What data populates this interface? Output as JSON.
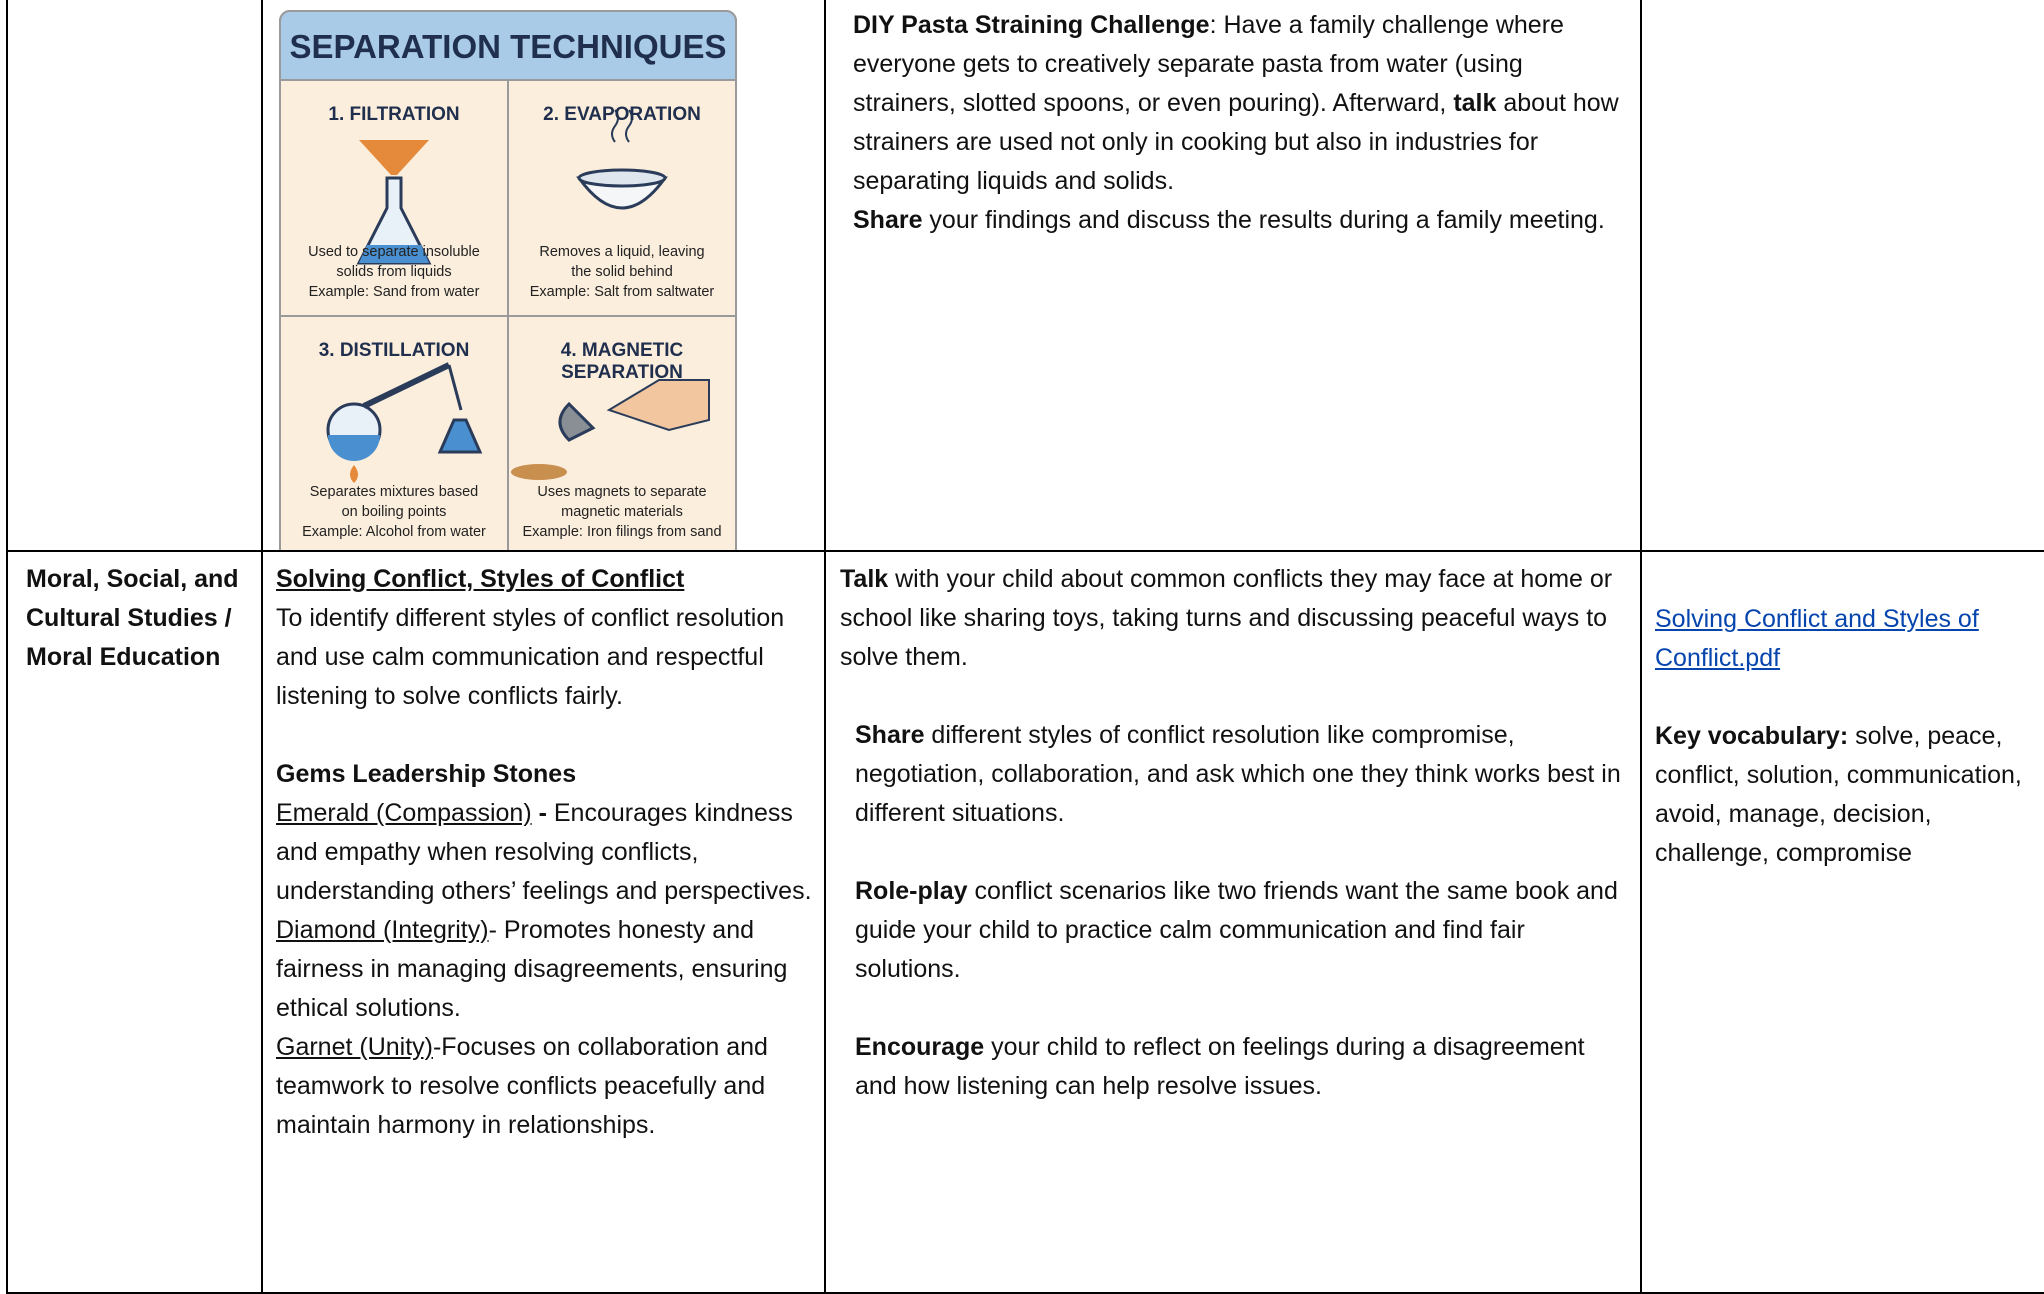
{
  "infographic": {
    "title": "SEPARATION TECHNIQUES",
    "panels": [
      {
        "heading": [
          "1. FILTRATION"
        ],
        "caption": [
          "Used to separate insoluble",
          "solids from liquids",
          "Example: Sand from water"
        ]
      },
      {
        "heading": [
          "2. EVAPORATION"
        ],
        "caption": [
          "Removes a liquid, leaving",
          "the solid behind",
          "Example: Salt from saltwater"
        ]
      },
      {
        "heading": [
          "3. DISTILLATION"
        ],
        "caption": [
          "Separates mixtures based",
          "on boiling points",
          "Example: Alcohol from water"
        ]
      },
      {
        "heading": [
          "4. MAGNETIC",
          "SEPARATION"
        ],
        "caption": [
          "Uses magnets to separate",
          "magnetic materials",
          "Example: Iron filings from sand"
        ]
      }
    ]
  },
  "rows": [
    {
      "activity": [
        [
          [
            {
              "text": "DIY Pasta Straining Challenge",
              "style": "bold"
            },
            ": Have a family challenge where everyone gets to creatively separate pasta from water (using strainers, slotted spoons, or even pouring). Afterward, ",
            {
              "text": "talk",
              "style": "bold"
            },
            " about how strainers are used not only in cooking but also in industries for separating liquids and solids."
          ],
          [
            {
              "text": "Share",
              "style": "bold"
            },
            " your findings and discuss the results during a family meeting."
          ]
        ]
      ]
    },
    {
      "subject": "Moral, Social, and Cultural Studies / Moral Education",
      "learning": [
        [
          [
            {
              "text": "Solving Conflict, Styles of Conflict",
              "style": "bold underline"
            }
          ],
          [
            "To identify different styles of conflict resolution and use calm communication and respectful listening to solve conflicts fairly."
          ]
        ],
        [
          [
            {
              "text": "Gems Leadership Stones",
              "style": "bold"
            }
          ],
          [
            {
              "text": "Emerald (Compassion)",
              "style": "underline"
            },
            {
              "text": " -",
              "style": "bold"
            },
            " Encourages kindness and empathy when resolving conflicts, understanding others’ feelings and perspectives."
          ],
          [
            {
              "text": "Diamond (Integrity)",
              "style": "underline"
            },
            "- Promotes honesty and fairness in managing disagreements, ensuring ethical solutions."
          ],
          [
            {
              "text": "Garnet (Unity)",
              "style": "underline"
            },
            "-Focuses on collaboration and teamwork to resolve conflicts peacefully and maintain harmony in relationships."
          ]
        ]
      ],
      "activity": [
        [
          [
            {
              "text": "Talk",
              "style": "bold"
            },
            " with your child about common conflicts they may face at home or school like sharing toys, taking turns and discussing peaceful ways to solve them."
          ]
        ],
        [
          [
            {
              "text": "Share",
              "style": "bold"
            },
            " different styles of conflict resolution like compromise, negotiation, collaboration, and ask which one they think works best in different situations."
          ]
        ],
        [
          [
            {
              "text": "Role-play",
              "style": "bold"
            },
            " conflict scenarios like two friends want the same book and guide your child to practice calm communication and find fair solutions."
          ]
        ],
        [
          [
            {
              "text": "Encourage",
              "style": "bold"
            },
            " your child to reflect on feelings during a disagreement and how listening can help resolve issues."
          ]
        ]
      ],
      "resources": [
        [
          [
            {
              "text": "Solving Conflict and Styles of Conflict.pdf",
              "style": "link"
            }
          ]
        ],
        [
          [
            {
              "text": "Key vocabulary:",
              "style": "bold"
            },
            " solve, peace, conflict, solution, communication, avoid, manage, decision, challenge, compromise"
          ]
        ]
      ]
    }
  ]
}
